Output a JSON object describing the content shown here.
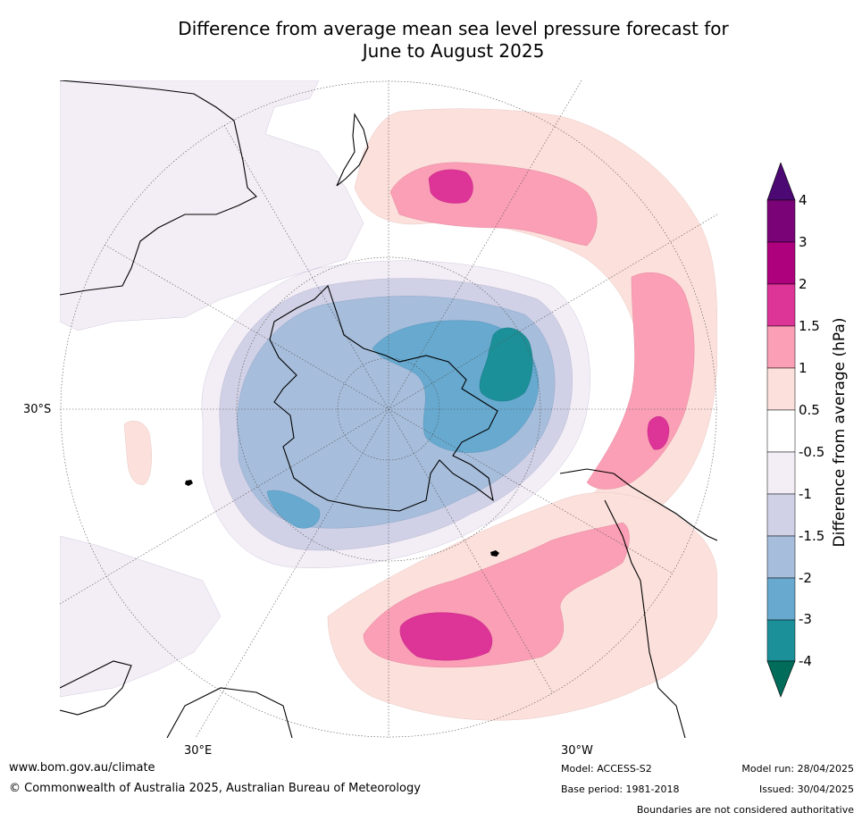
{
  "title_line1": "Difference from average mean sea level pressure forecast for",
  "title_line2": "June to August 2025",
  "graticule": {
    "lat_label": "30°S",
    "lon_label_left": "30°E",
    "lon_label_right": "30°W"
  },
  "colorbar": {
    "title": "Difference from average (hPa)",
    "ticks": [
      "4",
      "3",
      "2",
      "1.5",
      "1",
      "0.5",
      "-0.5",
      "-1",
      "-1.5",
      "-2",
      "-3",
      "-4"
    ],
    "colors": {
      "above_4": "#4c0873",
      "3_4": "#7a0477",
      "2_3": "#ae017e",
      "1.5_2": "#dd3497",
      "1_1.5": "#fa9fb5",
      "0.5_1": "#fce0dc",
      "neutral": "#ffffff",
      "m1_m0.5": "#f3eef6",
      "m1.5_m1": "#d0d1e6",
      "m2_m1.5": "#a6bddb",
      "m3_m2": "#67a9cf",
      "m4_m3": "#1c9099",
      "below_m4": "#016c59"
    }
  },
  "footer": {
    "website": "www.bom.gov.au/climate",
    "copyright": "© Commonwealth of Australia 2025, Australian Bureau of Meteorology",
    "model": "Model: ACCESS-S2",
    "base_period": "Base period: 1981-2018",
    "model_run": "Model run: 28/04/2025",
    "issued": "Issued: 30/04/2025",
    "disclaimer": "Boundaries are not considered authoritative"
  }
}
